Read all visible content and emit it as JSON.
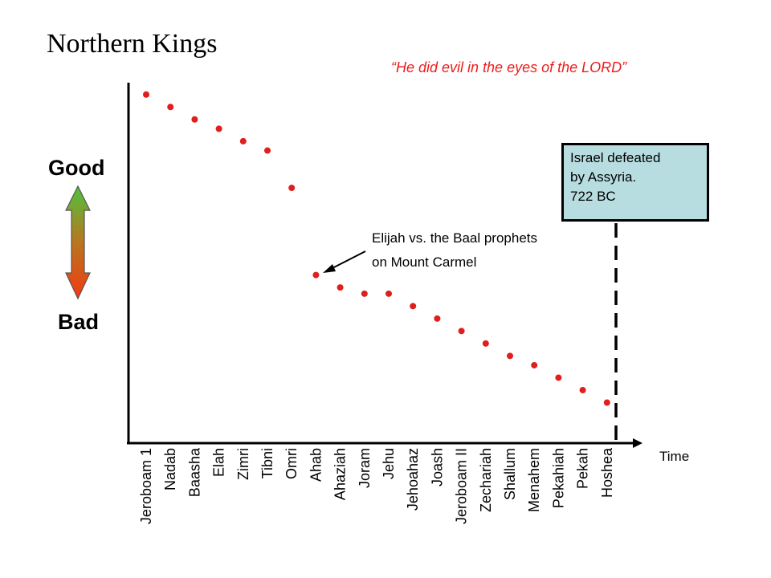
{
  "title": "Northern Kings",
  "quote": "“He did evil in the eyes of the LORD”",
  "scale_labels": {
    "top": "Good",
    "bottom": "Bad"
  },
  "callout": {
    "lines": [
      "Israel defeated",
      "by Assyria.",
      "722 BC"
    ],
    "fill_color": "#b7dde1"
  },
  "annotation": {
    "lines": [
      "Elijah vs. the Baal prophets",
      "on Mount Carmel"
    ],
    "points_to": "Ahab"
  },
  "chart_data": {
    "type": "scatter",
    "xlabel": "Time",
    "ylabel": "",
    "categories": [
      "Jeroboam 1",
      "Nadab",
      "Baasha",
      "Elah",
      "Zimri",
      "Tibni",
      "Omri",
      "Ahab",
      "Ahaziah",
      "Joram",
      "Jehu",
      "Jehoahaz",
      "Joash",
      "Jeroboam II",
      "Zechariah",
      "Shallum",
      "Menahem",
      "Pekahiah",
      "Pekah",
      "Hoshea"
    ],
    "values": [
      98,
      94,
      90,
      87,
      83,
      80,
      68,
      40,
      36,
      34,
      34,
      30,
      26,
      22,
      18,
      14,
      11,
      7,
      3,
      -1
    ],
    "ylim": [
      -13,
      100
    ],
    "grid": false,
    "marker_color": "#e01e1e",
    "divider": {
      "style": "dashed",
      "after_category": "Hoshea"
    }
  }
}
